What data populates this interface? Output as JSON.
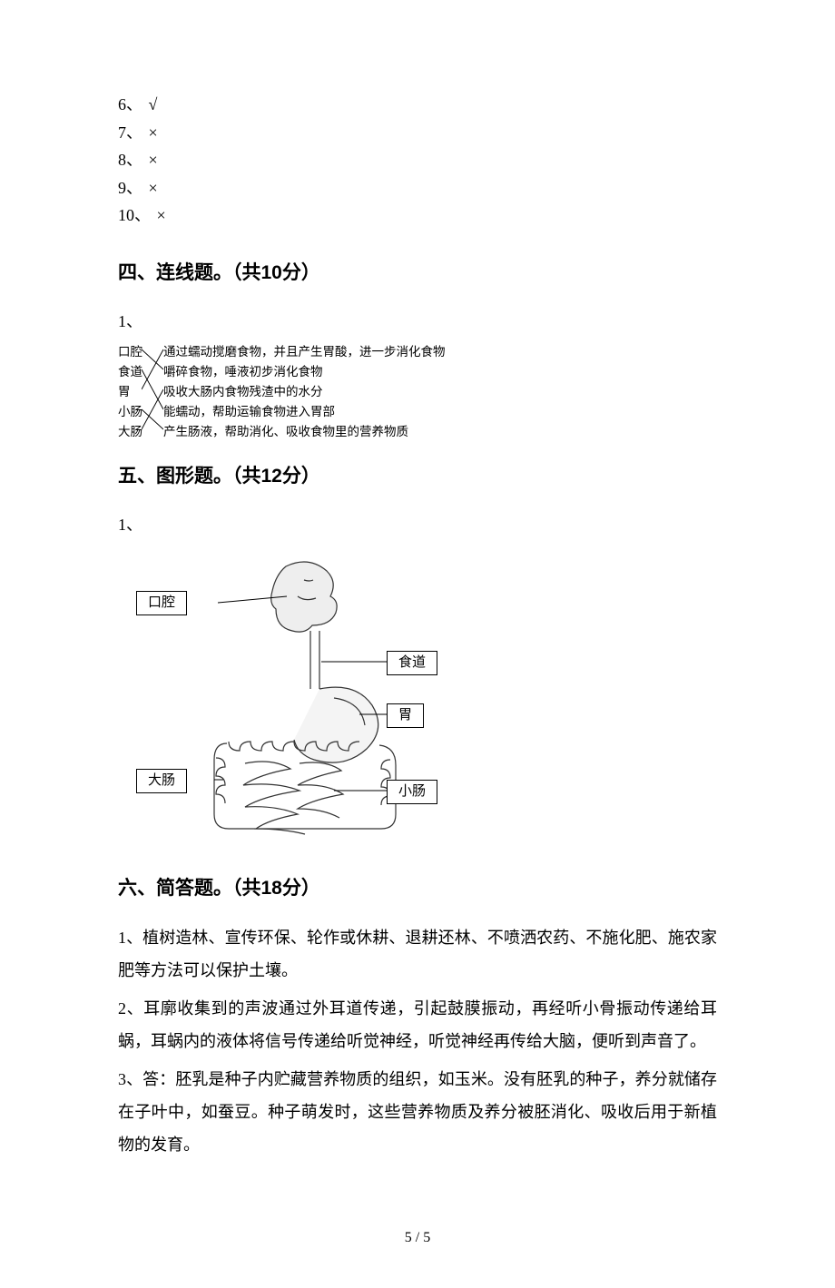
{
  "colors": {
    "text": "#000000",
    "bg": "#ffffff",
    "line": "#000000",
    "figure_stroke": "#333333"
  },
  "tf": [
    {
      "num": "6、",
      "mark": "√"
    },
    {
      "num": "7、",
      "mark": "×"
    },
    {
      "num": "8、",
      "mark": "×"
    },
    {
      "num": "9、",
      "mark": "×"
    },
    {
      "num": "10、",
      "mark": "×"
    }
  ],
  "section4": {
    "title": "四、连线题。（共10分）",
    "item": "1、",
    "left": [
      "口腔",
      "食道",
      "胃",
      "小肠",
      "大肠"
    ],
    "right": [
      "通过蠕动搅磨食物，并且产生胃酸，进一步消化食物",
      "嚼碎食物，唾液初步消化食物",
      "吸收大肠内食物残渣中的水分",
      "能蠕动，帮助运输食物进入胃部",
      "产生肠液，帮助消化、吸收食物里的营养物质"
    ],
    "lines": {
      "stroke": "#000000",
      "stroke_width": 0.9,
      "pairs": [
        {
          "from": 0,
          "to": 1
        },
        {
          "from": 1,
          "to": 3
        },
        {
          "from": 2,
          "to": 0
        },
        {
          "from": 3,
          "to": 4
        },
        {
          "from": 4,
          "to": 2
        }
      ]
    }
  },
  "section5": {
    "title": "五、图形题。（共12分）",
    "item": "1、",
    "labels": {
      "mouth": "口腔",
      "esophagus": "食道",
      "stomach": "胃",
      "small_intestine": "小肠",
      "large_intestine": "大肠"
    },
    "label_style": {
      "border_color": "#000000",
      "bg": "#ffffff",
      "fontsize": 15
    },
    "figure": {
      "stroke": "#333333",
      "fill": "none"
    }
  },
  "section6": {
    "title": "六、简答题。（共18分）",
    "answers": [
      "1、植树造林、宣传环保、轮作或休耕、退耕还林、不喷洒农药、不施化肥、施农家肥等方法可以保护土壤。",
      "2、耳廓收集到的声波通过外耳道传递，引起鼓膜振动，再经听小骨振动传递给耳蜗，耳蜗内的液体将信号传递给听觉神经，听觉神经再传给大脑，便听到声音了。",
      "3、答：胚乳是种子内贮藏营养物质的组织，如玉米。没有胚乳的种子，养分就储存在子叶中，如蚕豆。种子萌发时，这些营养物质及养分被胚消化、吸收后用于新植物的发育。"
    ]
  },
  "page_number": "5 / 5"
}
